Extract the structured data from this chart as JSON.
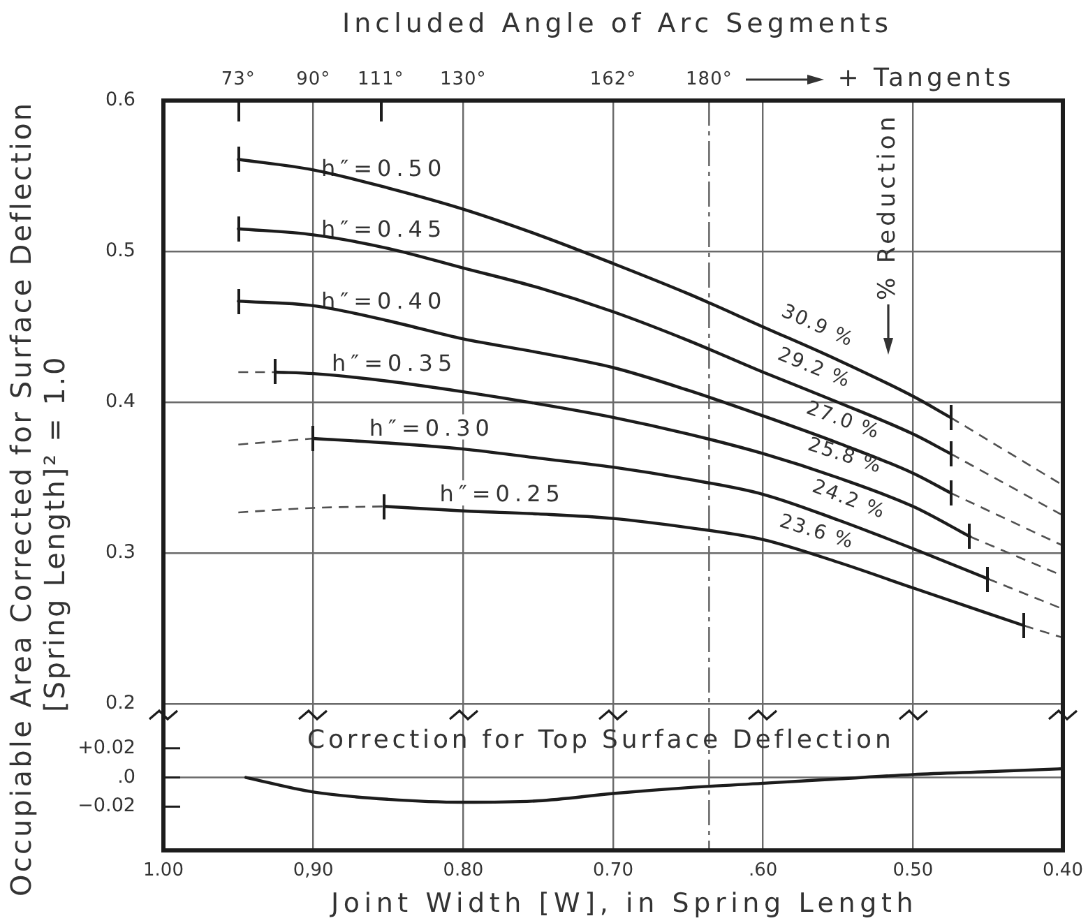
{
  "chart_data": [
    {
      "type": "line",
      "ylabel": "Occupiable Area Corrected for Surface Deflection\n[Spring Length]² = 1.0",
      "x2label": "Included Angle of Arc Segments",
      "xlim": [
        1.0,
        0.4
      ],
      "xticks": [
        1.0,
        0.9,
        0.8,
        0.7,
        0.6,
        0.5,
        0.4
      ],
      "tick_labels": "y",
      "ylim": [
        0.19,
        0.6
      ],
      "yticks": [
        0.2,
        0.3,
        0.4,
        0.5,
        0.6
      ],
      "grid": true,
      "series": [
        {
          "name": "h″=0.50",
          "color": "#1c1c1c",
          "x": [
            0.95,
            0.9,
            0.85,
            0.8,
            0.75,
            0.7,
            0.65,
            0.6,
            0.55,
            0.5,
            0.475
          ],
          "values": [
            0.561,
            0.554,
            0.542,
            0.528,
            0.511,
            0.492,
            0.472,
            0.45,
            0.428,
            0.404,
            0.39
          ]
        },
        {
          "name": "h″=0.45",
          "color": "#1c1c1c",
          "x": [
            0.95,
            0.9,
            0.85,
            0.8,
            0.75,
            0.7,
            0.65,
            0.6,
            0.55,
            0.5,
            0.475
          ],
          "values": [
            0.515,
            0.511,
            0.502,
            0.489,
            0.476,
            0.46,
            0.441,
            0.42,
            0.4,
            0.379,
            0.366
          ]
        },
        {
          "name": "h″=0.40",
          "color": "#1c1c1c",
          "x": [
            0.95,
            0.9,
            0.85,
            0.8,
            0.75,
            0.7,
            0.65,
            0.6,
            0.55,
            0.5,
            0.475
          ],
          "values": [
            0.467,
            0.464,
            0.454,
            0.442,
            0.433,
            0.423,
            0.408,
            0.391,
            0.373,
            0.353,
            0.34
          ]
        },
        {
          "name": "h″=0.35",
          "color": "#1c1c1c",
          "x": [
            0.925,
            0.9,
            0.85,
            0.8,
            0.75,
            0.7,
            0.65,
            0.6,
            0.55,
            0.5,
            0.462
          ],
          "values": [
            0.42,
            0.419,
            0.414,
            0.407,
            0.399,
            0.39,
            0.379,
            0.366,
            0.35,
            0.331,
            0.311
          ]
        },
        {
          "name": "h″=0.30",
          "color": "#1c1c1c",
          "x": [
            0.9,
            0.85,
            0.8,
            0.75,
            0.7,
            0.65,
            0.6,
            0.55,
            0.5,
            0.45
          ],
          "values": [
            0.376,
            0.373,
            0.369,
            0.363,
            0.357,
            0.349,
            0.339,
            0.322,
            0.303,
            0.283
          ]
        },
        {
          "name": "h″=0.25",
          "color": "#1c1c1c",
          "x": [
            0.853,
            0.8,
            0.75,
            0.7,
            0.65,
            0.6,
            0.55,
            0.5,
            0.426
          ],
          "values": [
            0.331,
            0.328,
            0.326,
            0.323,
            0.317,
            0.309,
            0.294,
            0.277,
            0.252
          ]
        },
        {
          "color": "#505050",
          "line_style": "dashed",
          "x": [
            0.475,
            0.4
          ],
          "values": [
            0.39,
            0.345
          ]
        },
        {
          "color": "#505050",
          "line_style": "dashed",
          "x": [
            0.475,
            0.4
          ],
          "values": [
            0.366,
            0.325
          ]
        },
        {
          "color": "#505050",
          "line_style": "dashed",
          "x": [
            0.475,
            0.4
          ],
          "values": [
            0.34,
            0.305
          ]
        },
        {
          "color": "#505050",
          "line_style": "dashed",
          "x": [
            0.462,
            0.4
          ],
          "values": [
            0.311,
            0.285
          ]
        },
        {
          "color": "#505050",
          "line_style": "dashed",
          "x": [
            0.45,
            0.4
          ],
          "values": [
            0.283,
            0.263
          ]
        },
        {
          "color": "#505050",
          "line_style": "dashed",
          "x": [
            0.426,
            0.4
          ],
          "values": [
            0.252,
            0.244
          ]
        },
        {
          "color": "#505050",
          "line_style": "dashed",
          "x": [
            0.95,
            0.925
          ],
          "values": [
            0.42,
            0.42
          ]
        },
        {
          "color": "#505050",
          "line_style": "dashed",
          "x": [
            0.95,
            0.9
          ],
          "values": [
            0.372,
            0.376
          ]
        },
        {
          "color": "#505050",
          "line_style": "dashed",
          "x": [
            0.95,
            0.9,
            0.853
          ],
          "values": [
            0.327,
            0.33,
            0.331
          ]
        }
      ],
      "ref_lines": [
        {
          "axis": "x",
          "value": 0.636,
          "line_style": "dashed"
        }
      ],
      "annotations": [
        "73°",
        "90°",
        "111°",
        "130°",
        "162°",
        "180°",
        "+ Tangents",
        "% Reduction",
        "30.9 %",
        "29.2 %",
        "27.0 %",
        "25.8 %",
        "24.2 %",
        "23.6 %"
      ]
    },
    {
      "type": "line",
      "title": "Correction for Top Surface Deflection",
      "xlabel": "Joint Width [W], in Spring Length",
      "x": [
        0.945,
        0.9,
        0.85,
        0.8,
        0.75,
        0.7,
        0.65,
        0.6,
        0.55,
        0.5,
        0.45,
        0.4
      ],
      "values": [
        0,
        -0.01,
        -0.015,
        -0.017,
        -0.016,
        -0.011,
        -0.007,
        -0.004,
        -0.001,
        0.002,
        0.004,
        0.006
      ],
      "color": "#1c1c1c",
      "xlim": [
        1.0,
        0.4
      ],
      "xticks": [
        {
          "value": 1.0,
          "label": "1.00"
        },
        {
          "value": 0.9,
          "label": "0,90"
        },
        {
          "value": 0.8,
          "label": "0.80"
        },
        {
          "value": 0.7,
          "label": "0.70"
        },
        {
          "value": 0.6,
          "label": ".60"
        },
        {
          "value": 0.5,
          "label": "0.50"
        },
        {
          "value": 0.4,
          "label": "0.40"
        }
      ],
      "ylim": [
        -0.05,
        0.04
      ],
      "yticks": [
        {
          "value": 0.02,
          "label": "+0.02"
        },
        {
          "value": 0,
          "label": ".0"
        },
        {
          "value": -0.02,
          "label": "−0.02"
        }
      ],
      "grid": "x",
      "ref_lines": [
        {
          "axis": "y",
          "value": 0
        },
        {
          "axis": "x",
          "value": 0.636,
          "line_style": "dashed"
        }
      ]
    }
  ]
}
